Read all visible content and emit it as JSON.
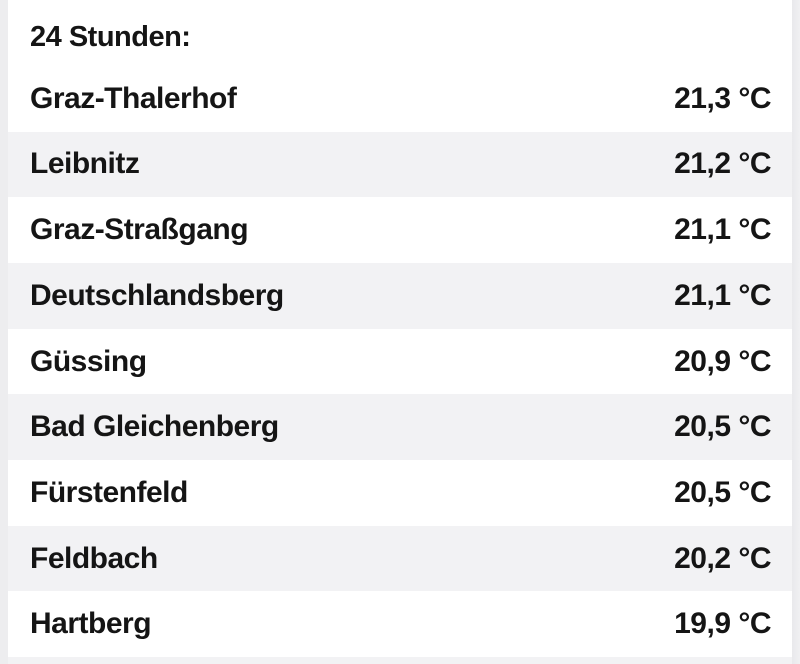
{
  "widget": {
    "title": "24 Stunden:"
  },
  "stations": {
    "rows": [
      {
        "name": "Graz-Thalerhof",
        "temp": "21,3 °C"
      },
      {
        "name": "Leibnitz",
        "temp": "21,2 °C"
      },
      {
        "name": "Graz-Straßgang",
        "temp": "21,1 °C"
      },
      {
        "name": "Deutschlandsberg",
        "temp": "21,1 °C"
      },
      {
        "name": "Güssing",
        "temp": "20,9 °C"
      },
      {
        "name": "Bad Gleichenberg",
        "temp": "20,5 °C"
      },
      {
        "name": "Fürstenfeld",
        "temp": "20,5 °C"
      },
      {
        "name": "Feldbach",
        "temp": "20,2 °C"
      },
      {
        "name": "Hartberg",
        "temp": "19,9 °C"
      }
    ]
  },
  "colors": {
    "row_alt_background": "#f2f2f4",
    "page_edge_background": "#ededef",
    "text": "#151515",
    "card_background": "#ffffff"
  }
}
